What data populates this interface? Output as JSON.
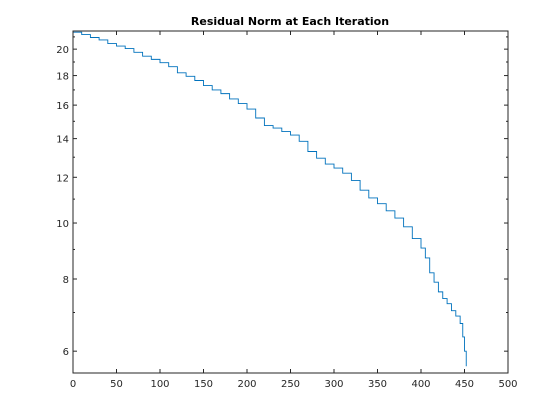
{
  "chart_data": {
    "type": "line",
    "title": "Residual Norm at Each Iteration",
    "xlabel": "",
    "ylabel": "",
    "y_scale": "log",
    "xlim": [
      0,
      500
    ],
    "ylim": [
      5.5,
      21.5
    ],
    "grid": false,
    "legend": "none",
    "x_ticks": [
      0,
      50,
      100,
      150,
      200,
      250,
      300,
      350,
      400,
      450,
      500
    ],
    "y_ticks": [
      6,
      8,
      10,
      12,
      14,
      16,
      18,
      20
    ],
    "x_tick_labels": [
      "0",
      "50",
      "100",
      "150",
      "200",
      "250",
      "300",
      "350",
      "400",
      "450",
      "500"
    ],
    "y_tick_labels": [
      "6",
      "8",
      "10",
      "12",
      "14",
      "16",
      "18",
      "20"
    ],
    "series": [
      {
        "color": "#0072bd",
        "style": "stairs",
        "points": [
          [
            0,
            21.4
          ],
          [
            10,
            21.2
          ],
          [
            20,
            20.95
          ],
          [
            30,
            20.75
          ],
          [
            40,
            20.45
          ],
          [
            50,
            20.25
          ],
          [
            60,
            20.05
          ],
          [
            70,
            19.75
          ],
          [
            80,
            19.45
          ],
          [
            90,
            19.2
          ],
          [
            100,
            18.95
          ],
          [
            110,
            18.65
          ],
          [
            120,
            18.2
          ],
          [
            130,
            17.95
          ],
          [
            140,
            17.65
          ],
          [
            150,
            17.3
          ],
          [
            160,
            17.0
          ],
          [
            170,
            16.75
          ],
          [
            180,
            16.4
          ],
          [
            190,
            16.1
          ],
          [
            200,
            15.75
          ],
          [
            210,
            15.2
          ],
          [
            220,
            14.75
          ],
          [
            230,
            14.6
          ],
          [
            240,
            14.4
          ],
          [
            250,
            14.2
          ],
          [
            260,
            13.85
          ],
          [
            270,
            13.3
          ],
          [
            280,
            12.95
          ],
          [
            290,
            12.65
          ],
          [
            300,
            12.45
          ],
          [
            310,
            12.2
          ],
          [
            320,
            11.85
          ],
          [
            330,
            11.4
          ],
          [
            340,
            11.05
          ],
          [
            350,
            10.8
          ],
          [
            360,
            10.5
          ],
          [
            370,
            10.2
          ],
          [
            380,
            9.85
          ],
          [
            390,
            9.4
          ],
          [
            400,
            9.05
          ],
          [
            405,
            8.7
          ],
          [
            410,
            8.2
          ],
          [
            415,
            7.9
          ],
          [
            420,
            7.6
          ],
          [
            425,
            7.4
          ],
          [
            430,
            7.25
          ],
          [
            435,
            7.05
          ],
          [
            440,
            6.9
          ],
          [
            445,
            6.7
          ],
          [
            448,
            6.35
          ],
          [
            450,
            6.0
          ],
          [
            452,
            5.65
          ]
        ]
      }
    ]
  }
}
